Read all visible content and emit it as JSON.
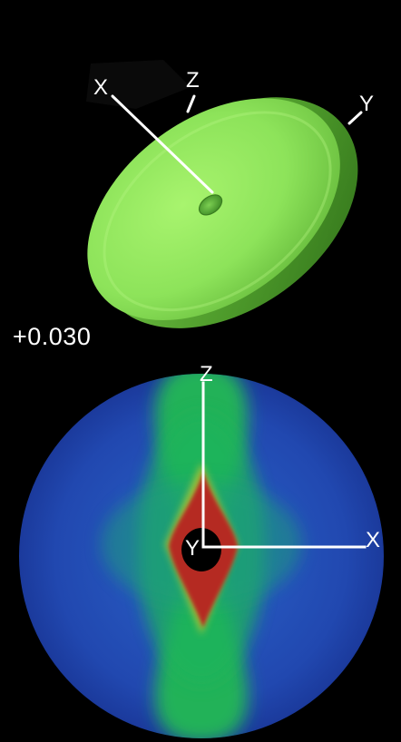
{
  "iso_value_label": "+0.030",
  "colors": {
    "background": "#000000",
    "isosurface": "#8ee85a",
    "map_low": "#1f3ea6",
    "map_mid": "#22b55a",
    "map_high": "#b22a22",
    "axes": "#ffffff"
  },
  "isosurface_panel": {
    "axes": {
      "x": "X",
      "y": "Y",
      "z": "Z"
    }
  },
  "slice_panel": {
    "axes": {
      "x": "X",
      "y": "Y",
      "z": "Z"
    }
  }
}
